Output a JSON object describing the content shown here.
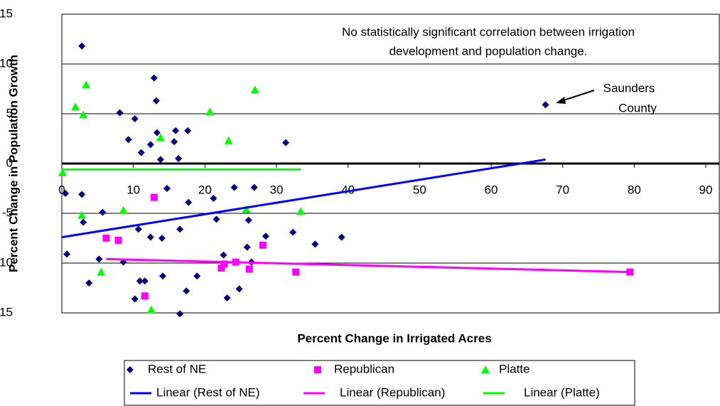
{
  "chart_data": {
    "type": "scatter",
    "xlabel": "Percent Change in Irrigated Acres",
    "ylabel": "Percent Change in Population Growth",
    "xlim": [
      0,
      90
    ],
    "ylim": [
      -15,
      15
    ],
    "xticks": [
      0,
      10,
      20,
      30,
      40,
      50,
      60,
      70,
      80,
      90
    ],
    "yticks": [
      -15,
      -10,
      -5,
      0,
      5,
      10,
      15
    ],
    "grid": true,
    "annotations": [
      {
        "text": [
          "No statistically significant correlation between irrigation",
          "development and population change."
        ]
      },
      {
        "text": [
          "Saunders",
          "County"
        ]
      }
    ],
    "series": [
      {
        "name": "Rest of NE",
        "color": "#000080",
        "marker": "diamond",
        "x": [
          2.8,
          12.9,
          13.2,
          8.1,
          10.2,
          9.3,
          13.3,
          15.9,
          17.6,
          12.4,
          11.1,
          15.7,
          13.8,
          16.3,
          31.3,
          67.6,
          0.5,
          2.8,
          14.7,
          21.2,
          17.7,
          24.1,
          26.9,
          5.7,
          3.0,
          21.6,
          26.1,
          10.7,
          12.4,
          14.0,
          16.5,
          32.3,
          28.5,
          39.1,
          25.9,
          35.4,
          0.7,
          5.2,
          22.6,
          8.6,
          26.5,
          10.9,
          11.6,
          14.1,
          18.9,
          3.8,
          17.4,
          24.8,
          10.2,
          23.1,
          16.5
        ],
        "values": [
          11.8,
          8.6,
          6.3,
          5.1,
          4.5,
          2.4,
          3.1,
          3.3,
          3.3,
          1.9,
          1.1,
          2.2,
          0.4,
          0.5,
          2.1,
          5.9,
          -3.0,
          -3.1,
          -2.5,
          -3.5,
          -3.9,
          -2.4,
          -2.4,
          -4.9,
          -5.9,
          -5.6,
          -5.7,
          -6.6,
          -7.4,
          -7.5,
          -6.6,
          -6.9,
          -7.3,
          -7.4,
          -8.4,
          -8.1,
          -9.1,
          -9.6,
          -9.2,
          -9.9,
          -9.9,
          -11.8,
          -11.8,
          -11.3,
          -11.3,
          -12.0,
          -12.8,
          -12.6,
          -13.6,
          -13.5,
          -15.1
        ]
      },
      {
        "name": "Republican",
        "color": "#ff00ff",
        "marker": "square",
        "x": [
          12.9,
          6.2,
          7.9,
          28.1,
          22.3,
          22.7,
          24.3,
          26.2,
          32.7,
          11.6,
          79.4
        ],
        "values": [
          -3.4,
          -7.5,
          -7.7,
          -8.2,
          -10.5,
          -10.1,
          -9.9,
          -10.6,
          -10.9,
          -13.3,
          -10.9
        ]
      },
      {
        "name": "Platte",
        "color": "#00ff00",
        "marker": "triangle",
        "x": [
          3.4,
          1.9,
          3.0,
          27.0,
          20.7,
          23.3,
          13.8,
          0.1,
          2.8,
          8.6,
          25.8,
          33.4,
          5.5,
          12.5
        ],
        "values": [
          7.9,
          5.7,
          4.9,
          7.4,
          5.2,
          2.3,
          2.6,
          -0.9,
          -5.2,
          -4.7,
          -4.6,
          -4.8,
          -10.9,
          -14.7
        ]
      },
      {
        "name": "Linear (Rest of NE)",
        "color": "#0000ff",
        "marker": "line",
        "x": [
          0,
          67.6
        ],
        "values": [
          -7.4,
          0.4
        ]
      },
      {
        "name": "Linear (Republican)",
        "color": "#ff00ff",
        "marker": "line",
        "x": [
          6.2,
          79.4
        ],
        "values": [
          -9.6,
          -10.9
        ]
      },
      {
        "name": "Linear (Platte)",
        "color": "#00ff00",
        "marker": "line",
        "x": [
          0,
          33.4
        ],
        "values": [
          -0.6,
          -0.6
        ]
      }
    ]
  }
}
